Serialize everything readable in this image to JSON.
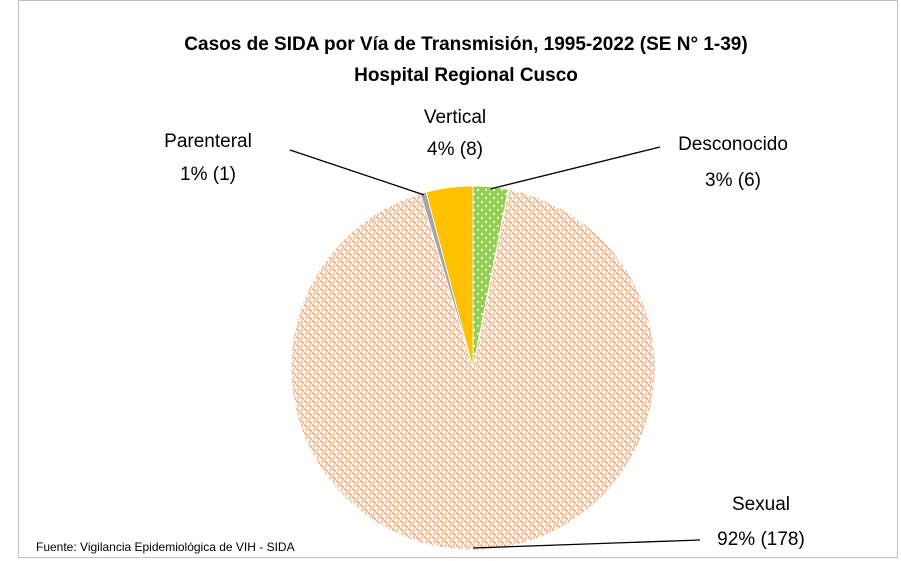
{
  "chart_data": {
    "type": "pie",
    "title": "Casos de SIDA por Vía de Transmisión, 1995-2022 (SE N° 1-39)",
    "subtitle": "Hospital Regional Cusco",
    "source": "Fuente: Vigilancia Epidemiológica de VIH - SIDA",
    "categories": [
      "Desconocido",
      "Sexual",
      "Parenteral",
      "Vertical"
    ],
    "values": [
      6,
      178,
      1,
      8
    ],
    "value_labels": [
      "3% (6)",
      "92% (178)",
      "1% (1)",
      "4% (8)"
    ],
    "colors": [
      "#92d050",
      "#f4b183",
      "#a5a5a5",
      "#ffc000"
    ]
  }
}
